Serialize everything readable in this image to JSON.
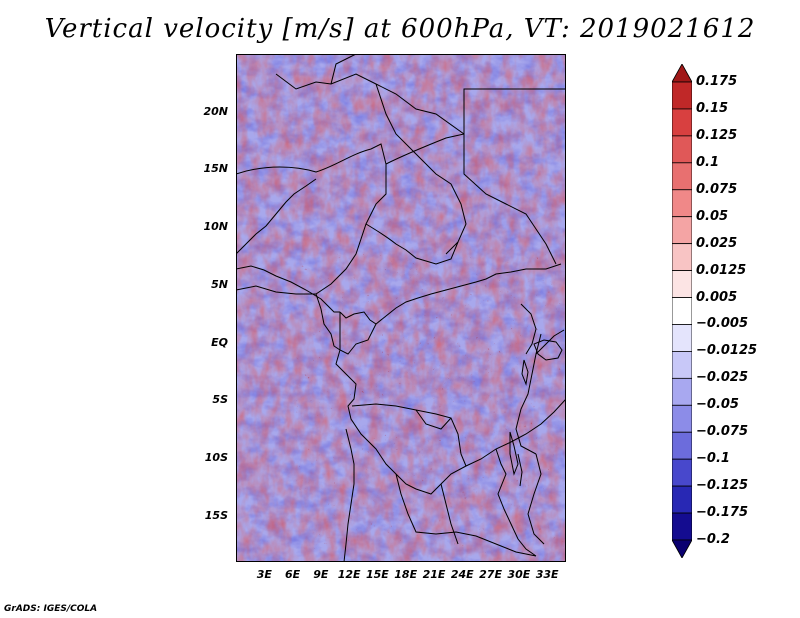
{
  "title": "Vertical velocity [m/s] at 600hPa, VT: 2019021612",
  "credit": "GrADS: IGES/COLA",
  "map": {
    "lon_range_deg": [
      0,
      35
    ],
    "lat_range_deg": [
      -19,
      25
    ],
    "lat_ticks": [
      "20N",
      "15N",
      "10N",
      "5N",
      "EQ",
      "5S",
      "10S",
      "15S"
    ],
    "lon_ticks": [
      "3E",
      "6E",
      "9E",
      "12E",
      "15E",
      "18E",
      "21E",
      "24E",
      "27E",
      "30E",
      "33E"
    ]
  },
  "colorbar": {
    "labels": [
      "0.175",
      "0.15",
      "0.125",
      "0.1",
      "0.075",
      "0.05",
      "0.025",
      "0.0125",
      "0.005",
      "−0.005",
      "−0.0125",
      "−0.025",
      "−0.05",
      "−0.075",
      "−0.1",
      "−0.125",
      "−0.175",
      "−0.2"
    ],
    "colors": [
      "#a01818",
      "#c02828",
      "#d84040",
      "#e05858",
      "#e87070",
      "#f08888",
      "#f4a4a4",
      "#f8c4c4",
      "#fce4e4",
      "#ffffff",
      "#e4e4fc",
      "#c8c8f8",
      "#a8a8f0",
      "#8c8ce8",
      "#6c6cdc",
      "#4848cc",
      "#2828b4",
      "#140c90",
      "#0a0070"
    ]
  }
}
